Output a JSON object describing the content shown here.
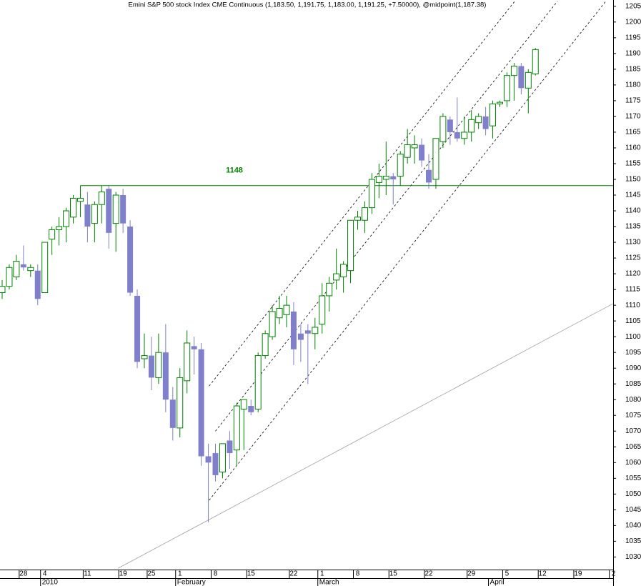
{
  "chart_data": {
    "type": "candlestick",
    "title": "Emini S&P 500 stock Index CME Continuous (1,183.50, 1,191.75, 1,183.00, 1,191.25, +7.50000), @midpoint(1,187.38)",
    "categories": [
      null,
      null,
      null,
      "28",
      null,
      null,
      "4",
      null,
      null,
      null,
      null,
      null,
      "11",
      null,
      null,
      null,
      null,
      "19",
      null,
      null,
      null,
      "25",
      null,
      null,
      null,
      "1",
      null,
      null,
      null,
      null,
      "8",
      null,
      null,
      null,
      null,
      "15",
      null,
      null,
      null,
      null,
      null,
      "22",
      null,
      null,
      null,
      "1",
      null,
      null,
      null,
      null,
      "8",
      null,
      null,
      null,
      null,
      "15",
      null,
      null,
      null,
      null,
      "22",
      null,
      null,
      null,
      null,
      null,
      "29",
      null,
      null,
      null,
      null,
      "5",
      null,
      null,
      null,
      null,
      "12",
      null,
      null,
      null,
      null,
      "19",
      null,
      null,
      null,
      null,
      "2"
    ],
    "category_groups": [
      null,
      null,
      null,
      null,
      null,
      null,
      "2010",
      null,
      null,
      null,
      null,
      null,
      null,
      null,
      null,
      null,
      null,
      null,
      null,
      null,
      null,
      null,
      null,
      null,
      null,
      "February",
      null,
      null,
      null,
      null,
      null,
      null,
      null,
      null,
      null,
      null,
      null,
      null,
      null,
      null,
      null,
      null,
      null,
      null,
      null,
      "March",
      null,
      null,
      null,
      null,
      null,
      null,
      null,
      null,
      null,
      null,
      null,
      null,
      null,
      null,
      null,
      null,
      null,
      null,
      null,
      null,
      null,
      null,
      null,
      "April",
      null,
      null,
      null,
      null,
      null,
      null,
      null,
      null,
      null,
      null,
      null,
      null,
      null,
      null,
      null,
      null,
      null
    ],
    "open": [
      1114,
      1116,
      1119,
      1123,
      1121,
      1121,
      1114,
      1131,
      1134,
      1135,
      1138,
      1143,
      1142,
      1136,
      1142,
      1147,
      1136,
      1145,
      1135,
      1113,
      1093,
      1094,
      1087,
      1095,
      1080,
      1071,
      1086,
      1097,
      1096,
      1062,
      1063,
      1057,
      1067,
      1064,
      1077,
      1078,
      1077,
      1094,
      1100,
      1106,
      1107,
      1108,
      1101,
      1102,
      1101,
      1104,
      1113,
      1118,
      1119,
      1121,
      1137,
      1137,
      1141,
      1149,
      1150,
      1151,
      1151,
      1157,
      1160,
      1161,
      1153,
      1150,
      1162,
      1169,
      1165,
      1163,
      1165,
      1168,
      1170,
      1167,
      1174,
      1175,
      1183,
      1186,
      1179,
      1183.5,
      null,
      null,
      null,
      null,
      null,
      null,
      null,
      null,
      null,
      null,
      null
    ],
    "high": [
      1118,
      1123,
      1126,
      1129,
      1123,
      1123,
      1130,
      1135,
      1138,
      1141,
      1145,
      1148,
      1146,
      1143,
      1148,
      1148,
      1146,
      1147,
      1137,
      1115,
      1101,
      1100,
      1101,
      1104,
      1084,
      1090,
      1102,
      1100,
      1098,
      1066,
      1066,
      1066,
      1070,
      1079,
      1080,
      1080,
      1095,
      1102,
      1110,
      1113,
      1113,
      1111,
      1104,
      1104,
      1106,
      1117,
      1119,
      1128,
      1124,
      1137,
      1140,
      1143,
      1152,
      1155,
      1162,
      1152,
      1159,
      1166,
      1164,
      1163,
      1158,
      1163,
      1171,
      1170,
      1176,
      1170,
      1172,
      1171,
      1173,
      1175,
      1175,
      1184,
      1187,
      1187,
      1185,
      1191.75,
      null,
      null,
      null,
      null,
      null,
      null,
      null,
      null,
      null,
      null,
      null
    ],
    "low": [
      1112,
      1115,
      1118,
      1121,
      1119,
      1110,
      1114,
      1126,
      1129,
      1130,
      1136,
      1138,
      1130,
      1130,
      1136,
      1128,
      1127,
      1133,
      1113,
      1090,
      1090,
      1083,
      1085,
      1076,
      1067,
      1068,
      1082,
      1088,
      1059,
      1041,
      1054,
      1055,
      1058,
      1059,
      1064,
      1075,
      1076,
      1093,
      1099,
      1104,
      1103,
      1091,
      1092,
      1085,
      1096,
      1101,
      1108,
      1115,
      1114,
      1117,
      1134,
      1133,
      1139,
      1144,
      1145,
      1142,
      1148,
      1155,
      1155,
      1154,
      1147,
      1147,
      1160,
      1161,
      1162,
      1161,
      1162,
      1166,
      1164,
      1163,
      1173,
      1173,
      1175,
      1177,
      1171,
      1183,
      null,
      null,
      null,
      null,
      null,
      null,
      null,
      null,
      null,
      null,
      null
    ],
    "close": [
      1116,
      1122,
      1124,
      1122,
      1122,
      1112,
      1130,
      1134,
      1135,
      1140,
      1144,
      1144,
      1135,
      1142,
      1146,
      1133,
      1145,
      1136,
      1114,
      1092,
      1094,
      1087,
      1095,
      1080,
      1071,
      1087,
      1098,
      1096,
      1062,
      1060,
      1056,
      1066,
      1063,
      1078,
      1080,
      1076,
      1094,
      1101,
      1108,
      1109,
      1110,
      1096,
      1099,
      1101,
      1103,
      1113,
      1117,
      1120,
      1123,
      1137,
      1138,
      1141,
      1150,
      1151,
      1151,
      1150,
      1158,
      1161,
      1161,
      1156,
      1149,
      1163,
      1170,
      1165,
      1163,
      1165,
      1169,
      1170,
      1166,
      1174,
      1174.5,
      1183,
      1186,
      1179,
      1184,
      1191.25,
      null,
      null,
      null,
      null,
      null,
      null,
      null,
      null,
      null,
      null,
      null
    ],
    "up_color": "#008000",
    "down_color": "#7f7fcc",
    "ylim": [
      1026,
      1207
    ],
    "yticks": [
      1030,
      1035,
      1040,
      1045,
      1050,
      1055,
      1060,
      1065,
      1070,
      1075,
      1080,
      1085,
      1090,
      1095,
      1100,
      1105,
      1110,
      1115,
      1120,
      1125,
      1130,
      1135,
      1140,
      1145,
      1150,
      1155,
      1160,
      1165,
      1170,
      1175,
      1180,
      1185,
      1190,
      1195,
      1200,
      1205
    ],
    "hline": {
      "y": 1148,
      "x_start": 11,
      "color": "#008000"
    },
    "trendlines": [
      {
        "x": [
          29.1,
          72.1
        ],
        "y": [
          1084.3,
          1206.6
        ],
        "style": "dashed",
        "color": "#000000"
      },
      {
        "x": [
          30,
          78.1
        ],
        "y": [
          1070,
          1206.6
        ],
        "style": "dashed",
        "color": "#000000"
      },
      {
        "x": [
          29.1,
          84.9
        ],
        "y": [
          1048,
          1206.6
        ],
        "style": "dashed",
        "color": "#000000"
      },
      {
        "x": [
          16.3,
          85.9
        ],
        "y": [
          1026.4,
          1110.5
        ],
        "style": "solid",
        "color": "#a0a0a0"
      }
    ]
  }
}
